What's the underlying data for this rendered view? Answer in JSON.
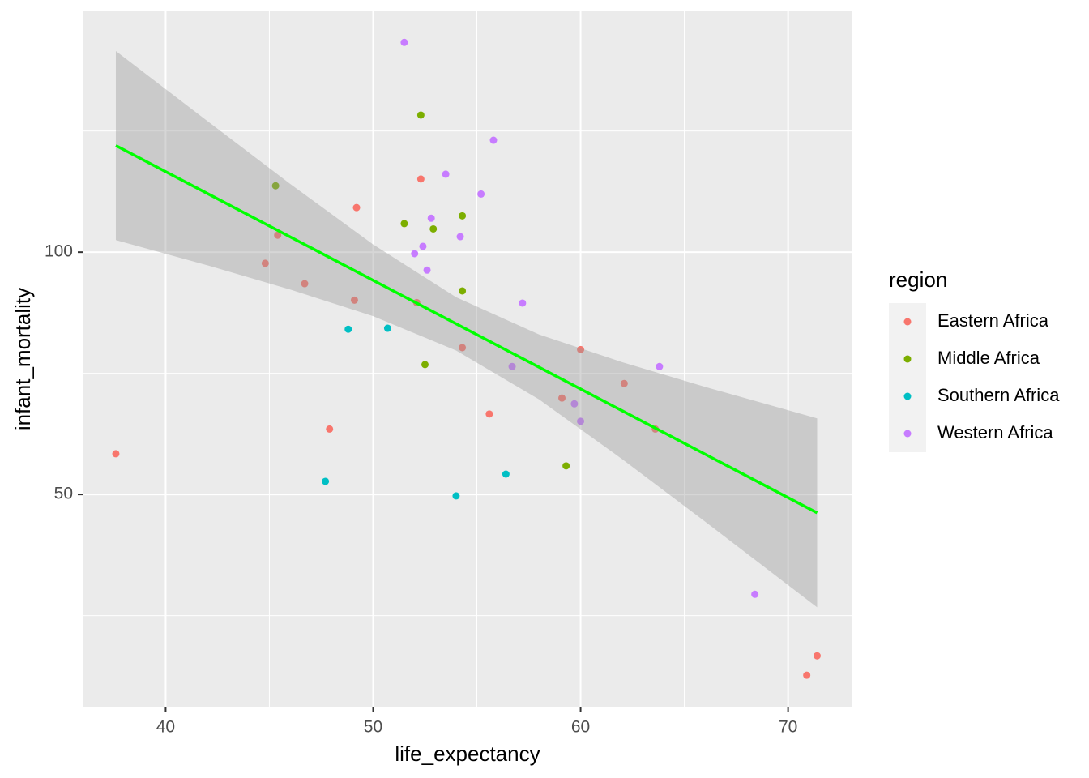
{
  "chart_data": {
    "type": "scatter",
    "xlabel": "life_expectancy",
    "ylabel": "infant_mortality",
    "xlim": [
      36,
      73.1
    ],
    "ylim": [
      6.2,
      149.7
    ],
    "xticks": [
      40,
      50,
      60,
      70
    ],
    "yticks": [
      50,
      100
    ],
    "xminor": [
      45,
      55,
      65
    ],
    "yminor": [
      25,
      75,
      125
    ],
    "grid": true,
    "legend_title": "region",
    "legend_position": "right",
    "series": [
      {
        "name": "Eastern Africa",
        "color": "#F8766D",
        "x": [
          37.6,
          45.4,
          44.8,
          46.7,
          49.1,
          49.2,
          47.9,
          52.3,
          52.1,
          54.3,
          55.6,
          59.1,
          60.0,
          62.1,
          63.6,
          70.9,
          71.4
        ],
        "values": [
          58.4,
          103.5,
          97.7,
          93.5,
          90.1,
          109.2,
          63.5,
          115.1,
          89.6,
          80.3,
          66.6,
          69.9,
          79.9,
          72.9,
          63.5,
          12.7,
          16.7
        ]
      },
      {
        "name": "Middle Africa",
        "color": "#7CAE00",
        "x": [
          52.3,
          45.3,
          51.5,
          54.3,
          52.9,
          54.3,
          52.5,
          59.3
        ],
        "values": [
          128.3,
          113.7,
          105.9,
          107.5,
          104.8,
          92.0,
          76.8,
          55.9
        ]
      },
      {
        "name": "Southern Africa",
        "color": "#00BFC4",
        "x": [
          48.8,
          50.7,
          47.7,
          54.0,
          56.4
        ],
        "values": [
          84.1,
          84.3,
          52.7,
          49.7,
          54.2
        ]
      },
      {
        "name": "Western Africa",
        "color": "#C77CFF",
        "x": [
          51.5,
          55.8,
          53.5,
          55.2,
          52.8,
          54.2,
          52.4,
          52.0,
          52.6,
          57.2,
          56.7,
          59.7,
          60.0,
          63.8,
          68.4
        ],
        "values": [
          143.3,
          123.1,
          116.1,
          112.0,
          107.0,
          103.2,
          101.2,
          99.7,
          96.3,
          89.5,
          76.4,
          68.7,
          65.1,
          76.4,
          29.4
        ]
      }
    ],
    "fit": {
      "color": "#00FF00",
      "x": [
        37.6,
        71.4
      ],
      "values": [
        122.0,
        46.2
      ]
    },
    "band": {
      "color": "#999999",
      "x": [
        37.6,
        42,
        46,
        50,
        54,
        58,
        62,
        66,
        71.4
      ],
      "lower": [
        102.5,
        97.3,
        92.3,
        86.8,
        79.7,
        69.6,
        57.3,
        44.4,
        26.7
      ],
      "upper": [
        141.5,
        127.1,
        114.1,
        101.6,
        90.7,
        83.0,
        77.3,
        72.2,
        65.7
      ]
    }
  }
}
